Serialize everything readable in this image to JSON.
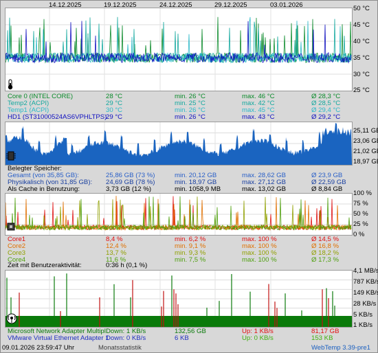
{
  "dates": [
    "14.12.2025",
    "19.12.2025",
    "24.12.2025",
    "29.12.2025",
    "03.01.2026"
  ],
  "colors": {
    "green": "#0a9a2a",
    "teal": "#13a89e",
    "cyan": "#2ab8c8",
    "blue": "#1010c0",
    "ram_fill": "#1a64c0",
    "red": "#e01010",
    "orange": "#e08000",
    "lime": "#70b010",
    "darkgreen": "#0a6a0a"
  },
  "temp": {
    "axis": [
      "50 °C",
      "45 °C",
      "40 °C",
      "35 °C",
      "30 °C",
      "25 °C"
    ],
    "rows": [
      {
        "name": "Core 0 (INTEL CORE)",
        "cur": "28 °C",
        "min": "min. 26 °C",
        "max": "max. 46 °C",
        "avg": "Ø 28,3 °C",
        "color": "#0a8a2a"
      },
      {
        "name": "Temp2 (ACPI)",
        "cur": "29 °C",
        "min": "min. 25 °C",
        "max": "max. 42 °C",
        "avg": "Ø 28,5 °C",
        "color": "#13a89e"
      },
      {
        "name": "Temp1 (ACPI)",
        "cur": "30 °C",
        "min": "min. 26 °C",
        "max": "max. 45 °C",
        "avg": "Ø 29,4 °C",
        "color": "#2ab8c8"
      },
      {
        "name": "HD1 (ST31000524AS6VPHLTPS)",
        "cur": "29 °C",
        "min": "min. 26 °C",
        "max": "max. 43 °C",
        "avg": "Ø 29,2 °C",
        "color": "#1010c0"
      }
    ]
  },
  "ram": {
    "axis": [
      "25,11 GB",
      "23,06 GB",
      "21,02 GB",
      "18,97 GB"
    ],
    "heading": "Belegter Speicher:",
    "rows": [
      {
        "name": "Gesamt (von 35,85 GB):",
        "cur": "25,86 GB (73 %)",
        "min": "min. 20,12 GB",
        "max": "max. 28,62 GB",
        "avg": "Ø 23,9 GB",
        "color": "#2a60c8"
      },
      {
        "name": "Physikalisch (von 31,85 GB):",
        "cur": "24,69 GB (78 %)",
        "min": "min. 18,97 GB",
        "max": "max. 27,12 GB",
        "avg": "Ø 22,59 GB",
        "color": "#1a40a0"
      },
      {
        "name": "Als Cache in Benutzung:",
        "cur": "3,73 GB (12 %)",
        "min": "min. 1058,9 MB",
        "max": "max. 13,02 GB",
        "avg": "Ø 8,84 GB",
        "color": "#000000"
      }
    ]
  },
  "cpu": {
    "axis": [
      "100 %",
      "75 %",
      "50 %",
      "25 %",
      "0 %"
    ],
    "rows": [
      {
        "name": "Core1",
        "cur": "8,4 %",
        "min": "min. 6,2 %",
        "max": "max. 100 %",
        "avg": "Ø 14,5 %",
        "color": "#e01010"
      },
      {
        "name": "Core2",
        "cur": "12,4 %",
        "min": "min. 9,1 %",
        "max": "max. 100 %",
        "avg": "Ø 16,8 %",
        "color": "#e07000"
      },
      {
        "name": "Core3",
        "cur": "13,7 %",
        "min": "min. 9,3 %",
        "max": "max. 100 %",
        "avg": "Ø 18,2 %",
        "color": "#90a000"
      },
      {
        "name": "Core4",
        "cur": "11,6 %",
        "min": "min. 7,5 %",
        "max": "max. 100 %",
        "avg": "Ø 17,3 %",
        "color": "#50a010"
      }
    ],
    "activity_label": "Zeit mit Benutzeraktivität:",
    "activity_value": "0:36 h (0,1 %)"
  },
  "net": {
    "axis": [
      "4,1 MB/s",
      "787 KB/s",
      "149 KB/s",
      "28 KB/s",
      "5 KB/s",
      "1 KB/s"
    ],
    "rows": [
      {
        "name": "Microsoft Network Adapter Multipl",
        "down": "Down: 1 KB/s",
        "downtotal": "132,56 GB",
        "up": "Up: 1 KB/s",
        "uptotal": "81,17 GB",
        "color": "#0a7a0a",
        "upcolor": "#e01010"
      },
      {
        "name": "VMware Virtual Ethernet Adapter 1",
        "down": "Down: 0 KB/s",
        "downtotal": "6 KB",
        "up": "Up: 0 KB/s",
        "uptotal": "153 KB",
        "color": "#2030c0",
        "upcolor": "#40b010"
      }
    ]
  },
  "status": {
    "datetime": "09.01.2026 23:59:47 Uhr",
    "mode": "Monatsstatistik",
    "app": "WebTemp 3.39-pre1"
  }
}
